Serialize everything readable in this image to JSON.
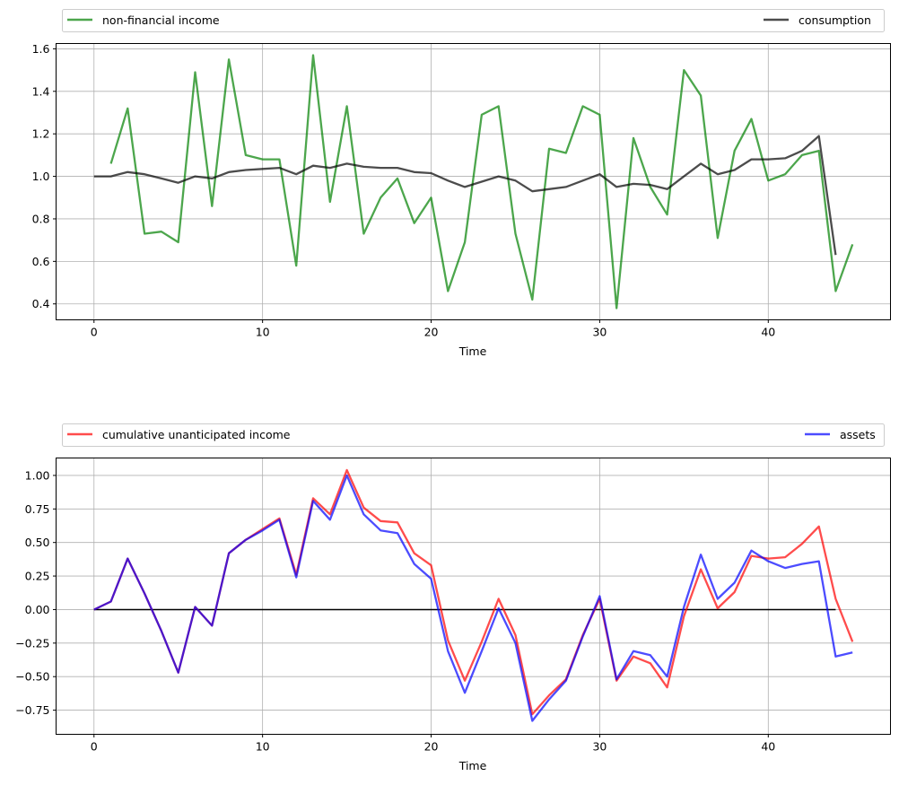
{
  "chart_data": [
    {
      "type": "line",
      "xlabel": "Time",
      "xlim": [
        -2.25,
        47.25
      ],
      "ylim": [
        0.325,
        1.625
      ],
      "xticks": [
        0,
        10,
        20,
        30,
        40
      ],
      "xtick_labels": [
        "0",
        "10",
        "20",
        "30",
        "40"
      ],
      "yticks": [
        0.4,
        0.6,
        0.8,
        1.0,
        1.2,
        1.4,
        1.6
      ],
      "ytick_labels": [
        "0.4",
        "0.6",
        "0.8",
        "1.0",
        "1.2",
        "1.4",
        "1.6"
      ],
      "grid": true,
      "legend_placement": "top, above axes, expanded",
      "series": [
        {
          "name": "non-financial income",
          "color": "#008000",
          "x_start": 1,
          "values": [
            1.06,
            1.32,
            0.73,
            0.74,
            0.69,
            1.49,
            0.86,
            1.55,
            1.1,
            1.08,
            1.08,
            0.58,
            1.57,
            0.88,
            1.33,
            0.73,
            0.9,
            0.99,
            0.78,
            0.9,
            0.46,
            0.69,
            1.29,
            1.33,
            0.73,
            0.42,
            1.13,
            1.11,
            1.33,
            1.29,
            0.38,
            1.18,
            0.95,
            0.82,
            1.5,
            1.38,
            0.71,
            1.12,
            1.27,
            0.98,
            1.01,
            1.1,
            1.12,
            0.46,
            0.68
          ]
        },
        {
          "name": "consumption",
          "color": "#000000",
          "x_start": 0,
          "values": [
            1.0,
            1.0,
            1.02,
            1.01,
            0.99,
            0.97,
            1.0,
            0.99,
            1.02,
            1.03,
            1.035,
            1.04,
            1.01,
            1.05,
            1.04,
            1.06,
            1.045,
            1.04,
            1.04,
            1.02,
            1.015,
            0.98,
            0.95,
            0.975,
            1.0,
            0.98,
            0.93,
            0.94,
            0.95,
            0.98,
            1.01,
            0.95,
            0.965,
            0.96,
            0.94,
            1.0,
            1.06,
            1.01,
            1.03,
            1.08,
            1.08,
            1.085,
            1.12,
            1.19,
            0.63
          ]
        }
      ]
    },
    {
      "type": "line",
      "xlabel": "Time",
      "xlim": [
        -2.25,
        47.25
      ],
      "ylim": [
        -0.93,
        1.13
      ],
      "xticks": [
        0,
        10,
        20,
        30,
        40
      ],
      "xtick_labels": [
        "0",
        "10",
        "20",
        "30",
        "40"
      ],
      "yticks": [
        -0.75,
        -0.5,
        -0.25,
        0,
        0.25,
        0.5,
        0.75,
        1.0
      ],
      "ytick_labels": [
        "−0.75",
        "−0.50",
        "−0.25",
        "0.00",
        "0.25",
        "0.50",
        "0.75",
        "1.00"
      ],
      "grid": true,
      "legend_placement": "top, above axes, expanded",
      "series": [
        {
          "name": "cumulative unanticipated income",
          "color": "#ff0000",
          "x_start": 0,
          "values": [
            0,
            0.06,
            0.38,
            0.12,
            -0.16,
            -0.47,
            0.02,
            -0.12,
            0.42,
            0.52,
            0.6,
            0.68,
            0.26,
            0.83,
            0.71,
            1.04,
            0.76,
            0.66,
            0.65,
            0.42,
            0.33,
            -0.23,
            -0.53,
            -0.24,
            0.08,
            -0.19,
            -0.78,
            -0.64,
            -0.52,
            -0.19,
            0.08,
            -0.53,
            -0.35,
            -0.4,
            -0.58,
            -0.05,
            0.3,
            0.01,
            0.13,
            0.4,
            0.38,
            0.39,
            0.49,
            0.62,
            0.08,
            -0.24
          ]
        },
        {
          "name": "assets",
          "color": "#0000ff",
          "x_start": 0,
          "values": [
            0,
            0.06,
            0.38,
            0.12,
            -0.16,
            -0.47,
            0.02,
            -0.12,
            0.42,
            0.52,
            0.59,
            0.67,
            0.24,
            0.81,
            0.67,
            1.0,
            0.71,
            0.59,
            0.57,
            0.34,
            0.23,
            -0.31,
            -0.62,
            -0.31,
            0.01,
            -0.25,
            -0.83,
            -0.67,
            -0.53,
            -0.2,
            0.1,
            -0.52,
            -0.31,
            -0.34,
            -0.5,
            0.02,
            0.41,
            0.08,
            0.2,
            0.44,
            0.36,
            0.31,
            0.34,
            0.36,
            -0.35,
            -0.32
          ]
        }
      ],
      "reference_line": {
        "y": 0,
        "x_range": [
          0,
          44
        ],
        "color": "#000000"
      }
    }
  ]
}
